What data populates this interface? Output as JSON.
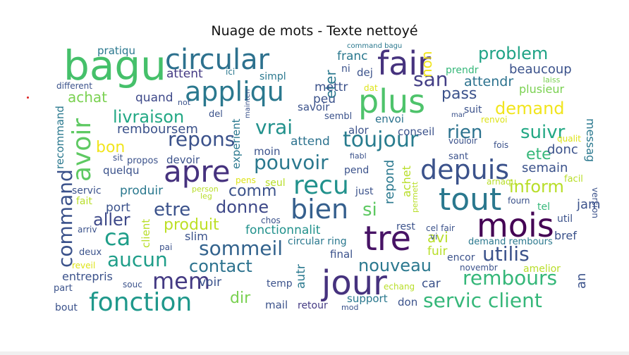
{
  "chart_data": {
    "type": "wordcloud",
    "title": "Nuage de mots - Texte nettoyé",
    "background": "#ffffff",
    "colormap": "viridis",
    "words": [
      {
        "text": "bagu",
        "color": "#45c06a"
      },
      {
        "text": "circular",
        "color": "#2d718e"
      },
      {
        "text": "fair",
        "color": "#46337e"
      },
      {
        "text": "appliqu",
        "color": "#2a788e"
      },
      {
        "text": "plus",
        "color": "#4ec36b"
      },
      {
        "text": "apre",
        "color": "#46327e"
      },
      {
        "text": "tout",
        "color": "#2a788e"
      },
      {
        "text": "depuis",
        "color": "#3b528b"
      },
      {
        "text": "mois",
        "color": "#440154"
      },
      {
        "text": "tre",
        "color": "#471365"
      },
      {
        "text": "jour",
        "color": "#46327e"
      },
      {
        "text": "bien",
        "color": "#355f8d"
      },
      {
        "text": "recu",
        "color": "#21918c"
      },
      {
        "text": "fonction",
        "color": "#1f988b"
      },
      {
        "text": "avoir",
        "color": "#5ec962"
      },
      {
        "text": "toujour",
        "color": "#287c8e"
      },
      {
        "text": "repons",
        "color": "#3b528b"
      },
      {
        "text": "command",
        "color": "#3b528b"
      },
      {
        "text": "pouvoir",
        "color": "#2a788e"
      },
      {
        "text": "sommeil",
        "color": "#33638d"
      },
      {
        "text": "rembours",
        "color": "#35b779"
      },
      {
        "text": "servic client",
        "color": "#35b779"
      },
      {
        "text": "utilis",
        "color": "#3b528b"
      },
      {
        "text": "ca",
        "color": "#1f9e89"
      },
      {
        "text": "aucun",
        "color": "#1f9e89"
      },
      {
        "text": "mem",
        "color": "#443a83"
      },
      {
        "text": "etre",
        "color": "#3b528b"
      },
      {
        "text": "donne",
        "color": "#3e4989"
      },
      {
        "text": "vrai",
        "color": "#21918c"
      },
      {
        "text": "livraison",
        "color": "#22a884"
      },
      {
        "text": "problem",
        "color": "#20a386"
      },
      {
        "text": "demand",
        "color": "#f1e51d"
      },
      {
        "text": "suivr",
        "color": "#22a884"
      },
      {
        "text": "rien",
        "color": "#2c728e"
      },
      {
        "text": "inform",
        "color": "#b8de29"
      },
      {
        "text": "nouveau",
        "color": "#2a788e"
      },
      {
        "text": "contact",
        "color": "#2c728e"
      },
      {
        "text": "san",
        "color": "#433e85"
      },
      {
        "text": "si",
        "color": "#5ec962"
      },
      {
        "text": "ete",
        "color": "#35b779"
      },
      {
        "text": "aller",
        "color": "#3e4989"
      },
      {
        "text": "comm",
        "color": "#3b528b"
      },
      {
        "text": "dir",
        "color": "#7ad151"
      },
      {
        "text": "produit",
        "color": "#bddf26"
      },
      {
        "text": "beaucoup",
        "color": "#3b528b"
      },
      {
        "text": "pass",
        "color": "#3b528b"
      },
      {
        "text": "achat",
        "color": "#7ad151"
      },
      {
        "text": "bon",
        "color": "#f1e51d"
      },
      {
        "text": "remboursem",
        "color": "#3b528b"
      },
      {
        "text": "attent",
        "color": "#443a83"
      },
      {
        "text": "quand",
        "color": "#3e4989"
      },
      {
        "text": "pratiqu",
        "color": "#2a788e"
      },
      {
        "text": "non",
        "color": "#f1e51d"
      },
      {
        "text": "franc",
        "color": "#2a788e"
      },
      {
        "text": "eter",
        "color": "#2a788e"
      },
      {
        "text": "mettr",
        "color": "#3b528b"
      },
      {
        "text": "peu",
        "color": "#3b528b"
      },
      {
        "text": "attendr",
        "color": "#2c728e"
      },
      {
        "text": "plusieur",
        "color": "#7ad151"
      },
      {
        "text": "messag",
        "color": "#2a788e"
      },
      {
        "text": "semain",
        "color": "#3b528b"
      },
      {
        "text": "donc",
        "color": "#3b528b"
      },
      {
        "text": "jam",
        "color": "#3b528b"
      },
      {
        "text": "fonctionnalit",
        "color": "#21918c"
      },
      {
        "text": "avi",
        "color": "#b8de29"
      },
      {
        "text": "fuir",
        "color": "#b8de29"
      },
      {
        "text": "repond",
        "color": "#2a788e"
      },
      {
        "text": "achet",
        "color": "#b8de29"
      },
      {
        "text": "attend",
        "color": "#2c728e"
      },
      {
        "text": "moin",
        "color": "#3b528b"
      },
      {
        "text": "experient",
        "color": "#2a788e"
      },
      {
        "text": "alor",
        "color": "#3b528b"
      },
      {
        "text": "envoi",
        "color": "#2c728e"
      },
      {
        "text": "conseil",
        "color": "#3b528b"
      },
      {
        "text": "savoir",
        "color": "#3b528b"
      },
      {
        "text": "sembl",
        "color": "#3b528b"
      },
      {
        "text": "dej",
        "color": "#3b528b"
      },
      {
        "text": "ni",
        "color": "#3b528b"
      },
      {
        "text": "ici",
        "color": "#2a788e"
      },
      {
        "text": "simpl",
        "color": "#2a788e"
      },
      {
        "text": "prendr",
        "color": "#35b779"
      },
      {
        "text": "laiss",
        "color": "#7ad151"
      },
      {
        "text": "suit",
        "color": "#3b528b"
      },
      {
        "text": "renvoi",
        "color": "#dde318"
      },
      {
        "text": "fois",
        "color": "#3b528b"
      },
      {
        "text": "vouloir",
        "color": "#3b528b"
      },
      {
        "text": "qualit",
        "color": "#dde318"
      },
      {
        "text": "version",
        "color": "#3b528b"
      },
      {
        "text": "facil",
        "color": "#b8de29"
      },
      {
        "text": "arnaqu",
        "color": "#b8de29"
      },
      {
        "text": "sant",
        "color": "#3b528b"
      },
      {
        "text": "fourn",
        "color": "#3b528b"
      },
      {
        "text": "tel",
        "color": "#35b779"
      },
      {
        "text": "util",
        "color": "#3b528b"
      },
      {
        "text": "bref",
        "color": "#3b528b"
      },
      {
        "text": "an",
        "color": "#3b528b"
      },
      {
        "text": "amelior",
        "color": "#b8de29"
      },
      {
        "text": "novembr",
        "color": "#3b528b"
      },
      {
        "text": "encor",
        "color": "#3b528b"
      },
      {
        "text": "demand rembours",
        "color": "#2a788e"
      },
      {
        "text": "cel fair",
        "color": "#3b528b"
      },
      {
        "text": "vi",
        "color": "#3b528b"
      },
      {
        "text": "rest",
        "color": "#3b528b"
      },
      {
        "text": "permett",
        "color": "#b8de29"
      },
      {
        "text": "just",
        "color": "#3b528b"
      },
      {
        "text": "pend",
        "color": "#3b528b"
      },
      {
        "text": "fiabl",
        "color": "#3b528b"
      },
      {
        "text": "seul",
        "color": "#b8de29"
      },
      {
        "text": "pens",
        "color": "#dde318"
      },
      {
        "text": "chos",
        "color": "#3b528b"
      },
      {
        "text": "circular ring",
        "color": "#2a788e"
      },
      {
        "text": "final",
        "color": "#3b528b"
      },
      {
        "text": "temp",
        "color": "#3b528b"
      },
      {
        "text": "echang",
        "color": "#b8de29"
      },
      {
        "text": "support",
        "color": "#2a788e"
      },
      {
        "text": "don",
        "color": "#3b528b"
      },
      {
        "text": "car",
        "color": "#3b528b"
      },
      {
        "text": "mail",
        "color": "#3b528b"
      },
      {
        "text": "retour",
        "color": "#443a83"
      },
      {
        "text": "mod",
        "color": "#3b528b"
      },
      {
        "text": "autr",
        "color": "#2a788e"
      },
      {
        "text": "voir",
        "color": "#3b528b"
      },
      {
        "text": "entrepris",
        "color": "#3b528b"
      },
      {
        "text": "souc",
        "color": "#3b528b"
      },
      {
        "text": "part",
        "color": "#3b528b"
      },
      {
        "text": "bout",
        "color": "#3b528b"
      },
      {
        "text": "reveil",
        "color": "#dde318"
      },
      {
        "text": "deux",
        "color": "#3b528b"
      },
      {
        "text": "pai",
        "color": "#3b528b"
      },
      {
        "text": "arriv",
        "color": "#3b528b"
      },
      {
        "text": "fait",
        "color": "#b8de29"
      },
      {
        "text": "servic",
        "color": "#3b528b"
      },
      {
        "text": "produir",
        "color": "#2a788e"
      },
      {
        "text": "port",
        "color": "#3b528b"
      },
      {
        "text": "slim",
        "color": "#3b528b"
      },
      {
        "text": "client",
        "color": "#b8de29"
      },
      {
        "text": "person",
        "color": "#b8de29"
      },
      {
        "text": "leg",
        "color": "#b8de29"
      },
      {
        "text": "quelqu",
        "color": "#3b528b"
      },
      {
        "text": "devoir",
        "color": "#3b528b"
      },
      {
        "text": "propos",
        "color": "#3b528b"
      },
      {
        "text": "sit",
        "color": "#3b528b"
      },
      {
        "text": "recommand",
        "color": "#2a788e"
      },
      {
        "text": "different",
        "color": "#3b528b"
      },
      {
        "text": "not",
        "color": "#3b528b"
      },
      {
        "text": "del",
        "color": "#3b528b"
      },
      {
        "text": "mainten",
        "color": "#3b528b"
      },
      {
        "text": "dat",
        "color": "#dde318"
      },
      {
        "text": "command bagu",
        "color": "#2a788e"
      },
      {
        "text": "mar",
        "color": "#3b528b"
      }
    ]
  }
}
